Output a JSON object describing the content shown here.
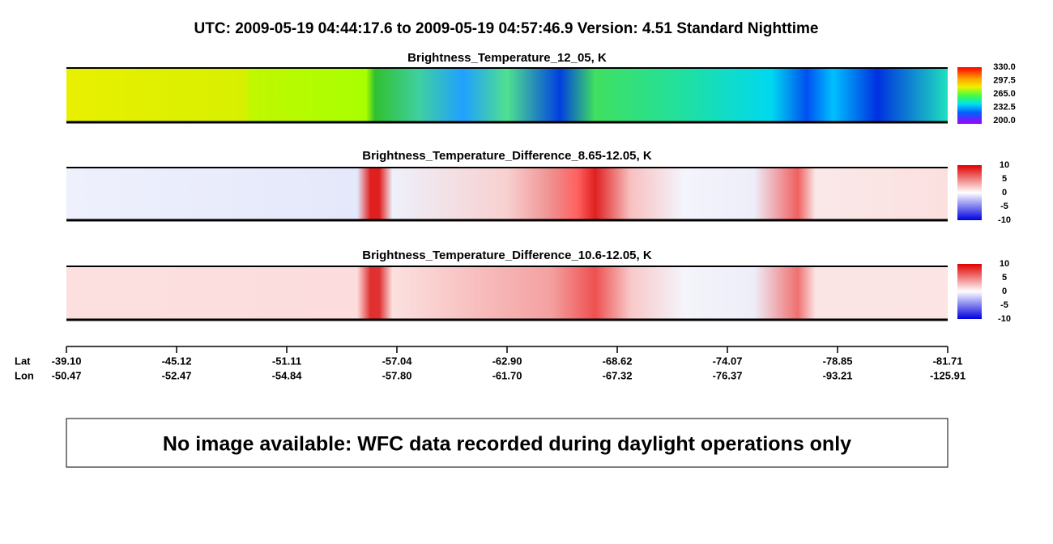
{
  "header": {
    "title": "UTC:  2009-05-19   04:44:17.6  to  2009-05-19   04:57:46.9    Version: 4.51  Standard Nighttime"
  },
  "panels": [
    {
      "title": "Brightness_Temperature_12_05, K",
      "colorbar": [
        "330.0",
        "297.5",
        "265.0",
        "232.5",
        "200.0"
      ]
    },
    {
      "title": "Brightness_Temperature_Difference_8.65-12.05, K",
      "colorbar": [
        "10",
        "5",
        "0",
        "-5",
        "-10"
      ]
    },
    {
      "title": "Brightness_Temperature_Difference_10.6-12.05, K",
      "colorbar": [
        "10",
        "5",
        "0",
        "-5",
        "-10"
      ]
    }
  ],
  "axis": {
    "lat_label": "Lat",
    "lon_label": "Lon",
    "lat": [
      "-39.10",
      "-45.12",
      "-51.11",
      "-57.04",
      "-62.90",
      "-68.62",
      "-74.07",
      "-78.85",
      "-81.71"
    ],
    "lon": [
      "-50.47",
      "-52.47",
      "-54.84",
      "-57.80",
      "-61.70",
      "-67.32",
      "-76.37",
      "-93.21",
      "-125.91"
    ]
  },
  "message": "No image available: WFC data recorded during daylight operations only"
}
